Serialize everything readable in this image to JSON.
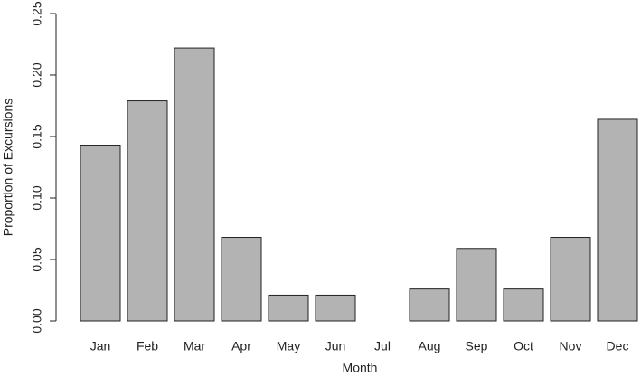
{
  "chart_data": {
    "type": "bar",
    "x_label": "Month",
    "y_label": "Proportion of Excursions",
    "categories": [
      "Jan",
      "Feb",
      "Mar",
      "Apr",
      "May",
      "Jun",
      "Jul",
      "Aug",
      "Sep",
      "Oct",
      "Nov",
      "Dec"
    ],
    "values": [
      0.143,
      0.179,
      0.222,
      0.068,
      0.021,
      0.021,
      0,
      0.026,
      0.059,
      0.026,
      0.068,
      0.164
    ],
    "color": "#b3b3b3",
    "ylim": [
      0,
      0.25
    ],
    "yticks": [
      {
        "value": 0,
        "label": "0.00"
      },
      0.05,
      {
        "value": 0.1,
        "label": "0.10"
      },
      0.15,
      {
        "value": 0.2,
        "label": "0.20"
      },
      0.25
    ]
  }
}
